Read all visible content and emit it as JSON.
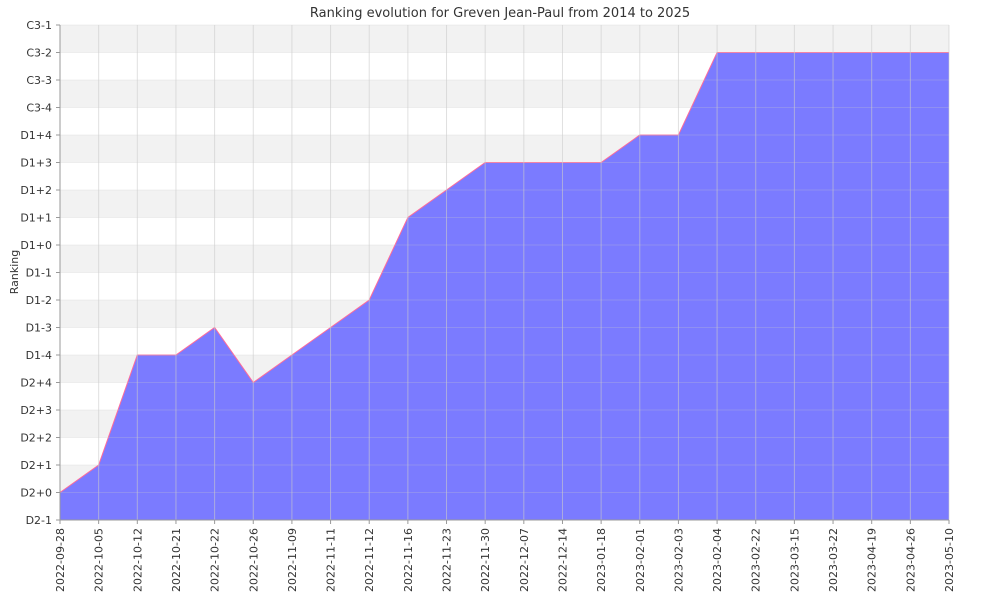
{
  "chart_data": {
    "type": "area",
    "title": "Ranking evolution for Greven Jean-Paul from 2014 to 2025",
    "xlabel": "",
    "ylabel": "Ranking",
    "y_ticks": [
      "C3-1",
      "C3-2",
      "C3-3",
      "C3-4",
      "D1+4",
      "D1+3",
      "D1+2",
      "D1+1",
      "D1+0",
      "D1-1",
      "D1-2",
      "D1-3",
      "D1-4",
      "D2+4",
      "D2+3",
      "D2+2",
      "D2+1",
      "D2+0",
      "D2-1"
    ],
    "x": [
      "2022-09-28",
      "2022-10-05",
      "2022-10-12",
      "2022-10-21",
      "2022-10-22",
      "2022-10-26",
      "2022-11-09",
      "2022-11-11",
      "2022-11-12",
      "2022-11-16",
      "2022-11-23",
      "2022-11-30",
      "2022-12-07",
      "2022-12-14",
      "2023-01-18",
      "2023-02-01",
      "2023-02-03",
      "2023-02-04",
      "2023-02-22",
      "2023-03-15",
      "2023-03-22",
      "2023-04-19",
      "2023-04-26",
      "2023-05-10"
    ],
    "values": [
      "D2+0",
      "D2+1",
      "D1-4",
      "D1-4",
      "D1-3",
      "D2+4",
      "D1-4",
      "D1-3",
      "D1-2",
      "D1+1",
      "D1+2",
      "D1+3",
      "D1+3",
      "D1+3",
      "D1+3",
      "D1+4",
      "D1+4",
      "C3-2",
      "C3-2",
      "C3-2",
      "C3-2",
      "C3-2",
      "C3-2",
      "C3-2"
    ],
    "grid": true,
    "colors": {
      "fill": "#7b7bff",
      "line": "#ff6b9a",
      "band_light": "#f2f2f2",
      "band_white": "#ffffff",
      "grid": "#cccccc",
      "axis": "#999999"
    }
  }
}
